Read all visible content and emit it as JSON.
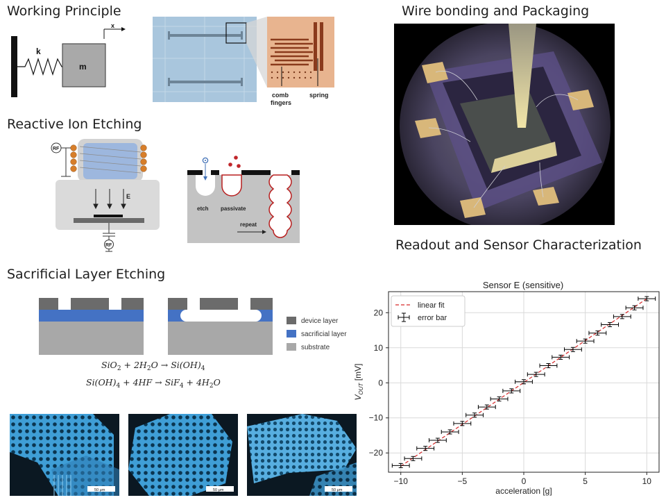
{
  "sections": {
    "working_principle": "Working Principle",
    "reactive_ion_etching": "Reactive Ion Etching",
    "sacrificial_layer_etching": "Sacrificial Layer Etching",
    "wire_bonding": "Wire bonding and Packaging",
    "readout": "Readout and Sensor Characterization"
  },
  "spring_mass": {
    "spring": "k",
    "mass": "m",
    "axis": "x"
  },
  "microscope": {
    "comb_1": "comb",
    "comb_2": "fingers",
    "spring": "spring"
  },
  "rie": {
    "rf_top": "RF",
    "rf_bottom": "RF",
    "field": "E",
    "etch": "etch",
    "passivate": "passivate",
    "repeat": "repeat"
  },
  "layers": {
    "device": "device layer",
    "sacrificial": "sacrificial layer",
    "substrate": "substrate"
  },
  "equations": {
    "eq1": {
      "lhs": "SiO",
      "lhs_sub": "2",
      "mid": " + 2H",
      "mid_sub": "2",
      "rhs": "O → Si(OH)",
      "rhs_sub": "4"
    },
    "eq2": {
      "lhs": "Si(OH)",
      "lhs_sub": "4",
      "mid": " + 4HF → SiF",
      "mid_sub": "4",
      "rhs": " + 4H",
      "rhs_sub": "2",
      "end": "O"
    }
  },
  "micrographs": {
    "scale_1": "50 μm",
    "scale_2": "50 μm",
    "scale_3": "50 μm"
  },
  "chart_data": {
    "type": "scatter",
    "title": "Sensor E (sensitive)",
    "xlabel": "acceleration [g]",
    "ylabel_main": "V",
    "ylabel_sub": "OUT",
    "ylabel_unit": " [mV]",
    "xlim": [
      -11,
      11
    ],
    "ylim": [
      -25.5,
      26
    ],
    "xticks": [
      -10,
      -5,
      0,
      5,
      10
    ],
    "yticks": [
      -20,
      -10,
      0,
      10,
      20
    ],
    "grid": true,
    "legend_position": "top-left",
    "legend": {
      "fit": "linear fit",
      "points": "error bar"
    },
    "fit": {
      "x": [
        -10,
        10
      ],
      "y": [
        -23.8,
        24.0
      ]
    },
    "x": [
      -10,
      -9,
      -8,
      -7,
      -6,
      -5,
      -4,
      -3,
      -2,
      -1,
      0,
      1,
      2,
      3,
      4,
      5,
      6,
      7,
      8,
      9,
      10
    ],
    "y": [
      -23.6,
      -21.6,
      -18.7,
      -16.4,
      -14.0,
      -11.6,
      -9.2,
      -6.9,
      -4.6,
      -2.3,
      0.3,
      2.4,
      4.9,
      7.3,
      9.5,
      11.9,
      14.2,
      16.6,
      18.9,
      21.4,
      24.0
    ],
    "xerr": 0.7,
    "yerr": 0.6,
    "colors": {
      "fit": "#d62728",
      "points": "#000000",
      "grid": "#d9d9d9"
    }
  }
}
